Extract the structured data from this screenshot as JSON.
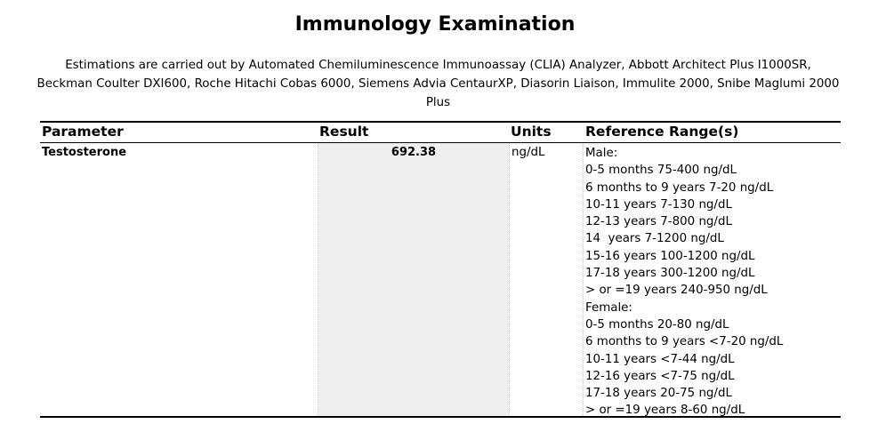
{
  "report": {
    "title": "Immunology Examination",
    "description": "Estimations are carried out by Automated Chemiluminescence Immunoassay (CLIA) Analyzer, Abbott Architect Plus I1000SR, Beckman Coulter DXI600, Roche Hitachi Cobas 6000, Siemens Advia CentaurXP, Diasorin Liaison, Immulite 2000, Snibe Maglumi 2000 Plus"
  },
  "table": {
    "headers": {
      "parameter": "Parameter",
      "result": "Result",
      "units": "Units",
      "reference": "Reference Range(s)"
    },
    "row": {
      "parameter": "Testosterone",
      "result": "692.38",
      "units": "ng/dL",
      "reference_lines": [
        "Male:",
        "0-5 months 75-400 ng/dL",
        "6 months to 9 years 7-20 ng/dL",
        "10-11 years 7-130 ng/dL",
        "12-13 years 7-800 ng/dL",
        "14  years 7-1200 ng/dL",
        "15-16 years 100-1200 ng/dL",
        "17-18 years 300-1200 ng/dL",
        "> or =19 years 240-950 ng/dL",
        "Female:",
        "0-5 months 20-80 ng/dL",
        "6 months to 9 years <7-20 ng/dL",
        "10-11 years <7-44 ng/dL",
        "12-16 years <7-75 ng/dL",
        "17-18 years 20-75 ng/dL",
        "> or =19 years 8-60 ng/dL"
      ]
    }
  }
}
